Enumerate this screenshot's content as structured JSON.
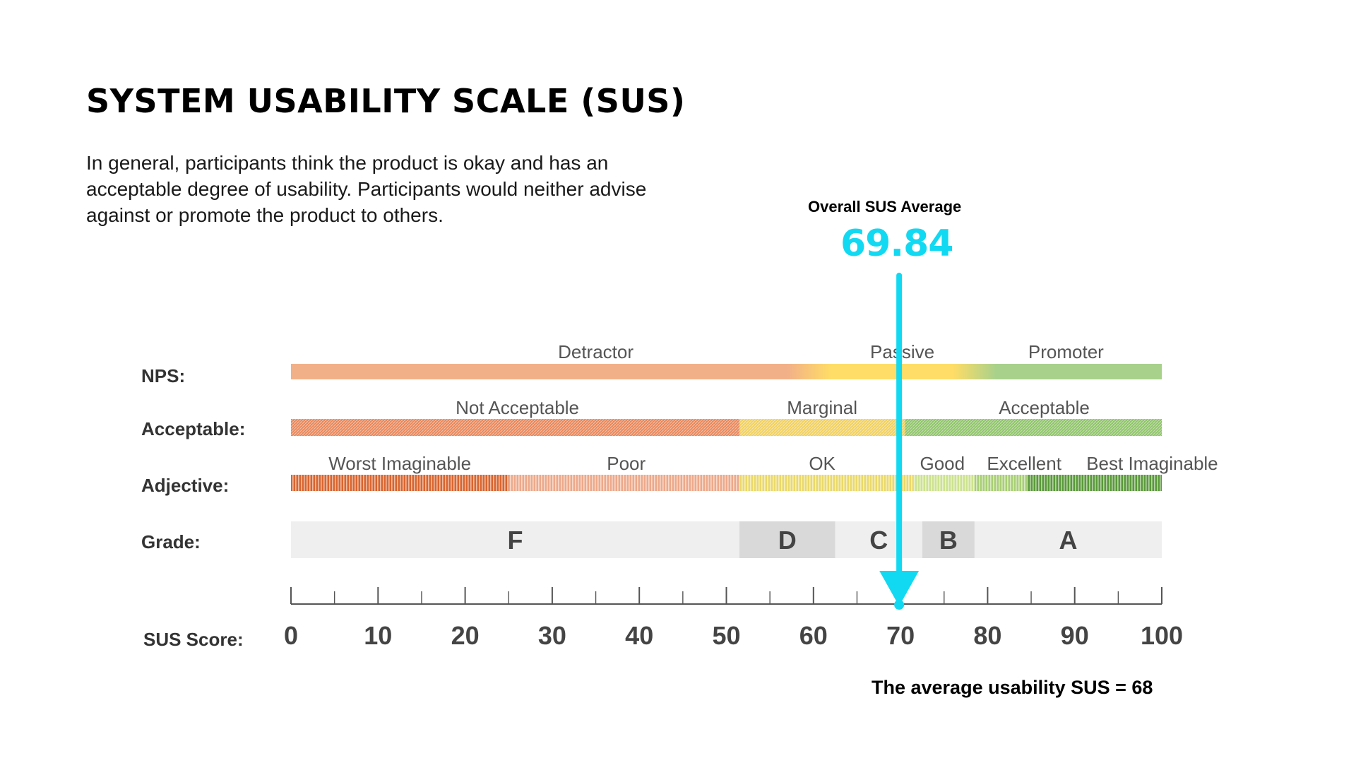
{
  "title": "SYSTEM USABILITY SCALE (SUS)",
  "description": "In general, participants think the product is okay and has an acceptable degree of usability. Participants would neither advise against or promote the product to others.",
  "overall": {
    "label": "Overall SUS Average",
    "value": "69.84",
    "color": "#12d9f2"
  },
  "footnote": "The average usability SUS = 68",
  "chart_data": {
    "type": "scale",
    "x_range": [
      0,
      100
    ],
    "marker_value": 69.84,
    "ticks": [
      0,
      10,
      20,
      30,
      40,
      50,
      60,
      70,
      80,
      90,
      100
    ],
    "tick_labels": [
      "0",
      "10",
      "20",
      "30",
      "40",
      "50",
      "60",
      "70",
      "80",
      "90",
      "100"
    ],
    "rows": [
      {
        "label": "NPS:",
        "segments": [
          {
            "label": "Detractor",
            "from": 0,
            "to": 60,
            "label_at": 35,
            "color": "#f2b088"
          },
          {
            "label": "Passive",
            "from": 60,
            "to": 80,
            "label_at": 70.2,
            "color": "#ffdd66"
          },
          {
            "label": "Promoter",
            "from": 80,
            "to": 100,
            "label_at": 89,
            "color": "#a8d18b"
          }
        ]
      },
      {
        "label": "Acceptable:",
        "segments": [
          {
            "label": "Not Acceptable",
            "from": 0,
            "to": 51.5,
            "label_at": 26,
            "color": "#e8875a"
          },
          {
            "label": "Marginal",
            "from": 51.5,
            "to": 70.5,
            "label_at": 61,
            "color": "#f0d060"
          },
          {
            "label": "Acceptable",
            "from": 70.5,
            "to": 100,
            "label_at": 86.5,
            "color": "#8fc46a"
          }
        ]
      },
      {
        "label": "Adjective:",
        "segments": [
          {
            "label": "Worst Imaginable",
            "from": 0,
            "to": 25,
            "label_at": 12.5,
            "color": "#d9652f"
          },
          {
            "label": "Poor",
            "from": 25,
            "to": 51.5,
            "label_at": 38.5,
            "color": "#eda98a"
          },
          {
            "label": "OK",
            "from": 51.5,
            "to": 71.5,
            "label_at": 61,
            "color": "#ead96a"
          },
          {
            "label": "Good",
            "from": 71.5,
            "to": 78.5,
            "label_at": 74.8,
            "color": "#cde28f"
          },
          {
            "label": "Excellent",
            "from": 78.5,
            "to": 84.5,
            "label_at": 84.2,
            "color": "#a8cf74"
          },
          {
            "label": "Best Imaginable",
            "from": 84.5,
            "to": 100,
            "label_at": 98.9,
            "color": "#5a9a3a"
          }
        ]
      }
    ],
    "grades": {
      "label": "Grade:",
      "segments": [
        {
          "label": "F",
          "from": 0,
          "to": 51.5,
          "color": "#efefef"
        },
        {
          "label": "D",
          "from": 51.5,
          "to": 62.5,
          "color": "#d9d9d9"
        },
        {
          "label": "C",
          "from": 62.5,
          "to": 72.5,
          "color": "#efefef"
        },
        {
          "label": "B",
          "from": 72.5,
          "to": 78.5,
          "color": "#d9d9d9"
        },
        {
          "label": "A",
          "from": 78.5,
          "to": 100,
          "color": "#efefef"
        }
      ]
    },
    "axis_label": "SUS Score:"
  }
}
